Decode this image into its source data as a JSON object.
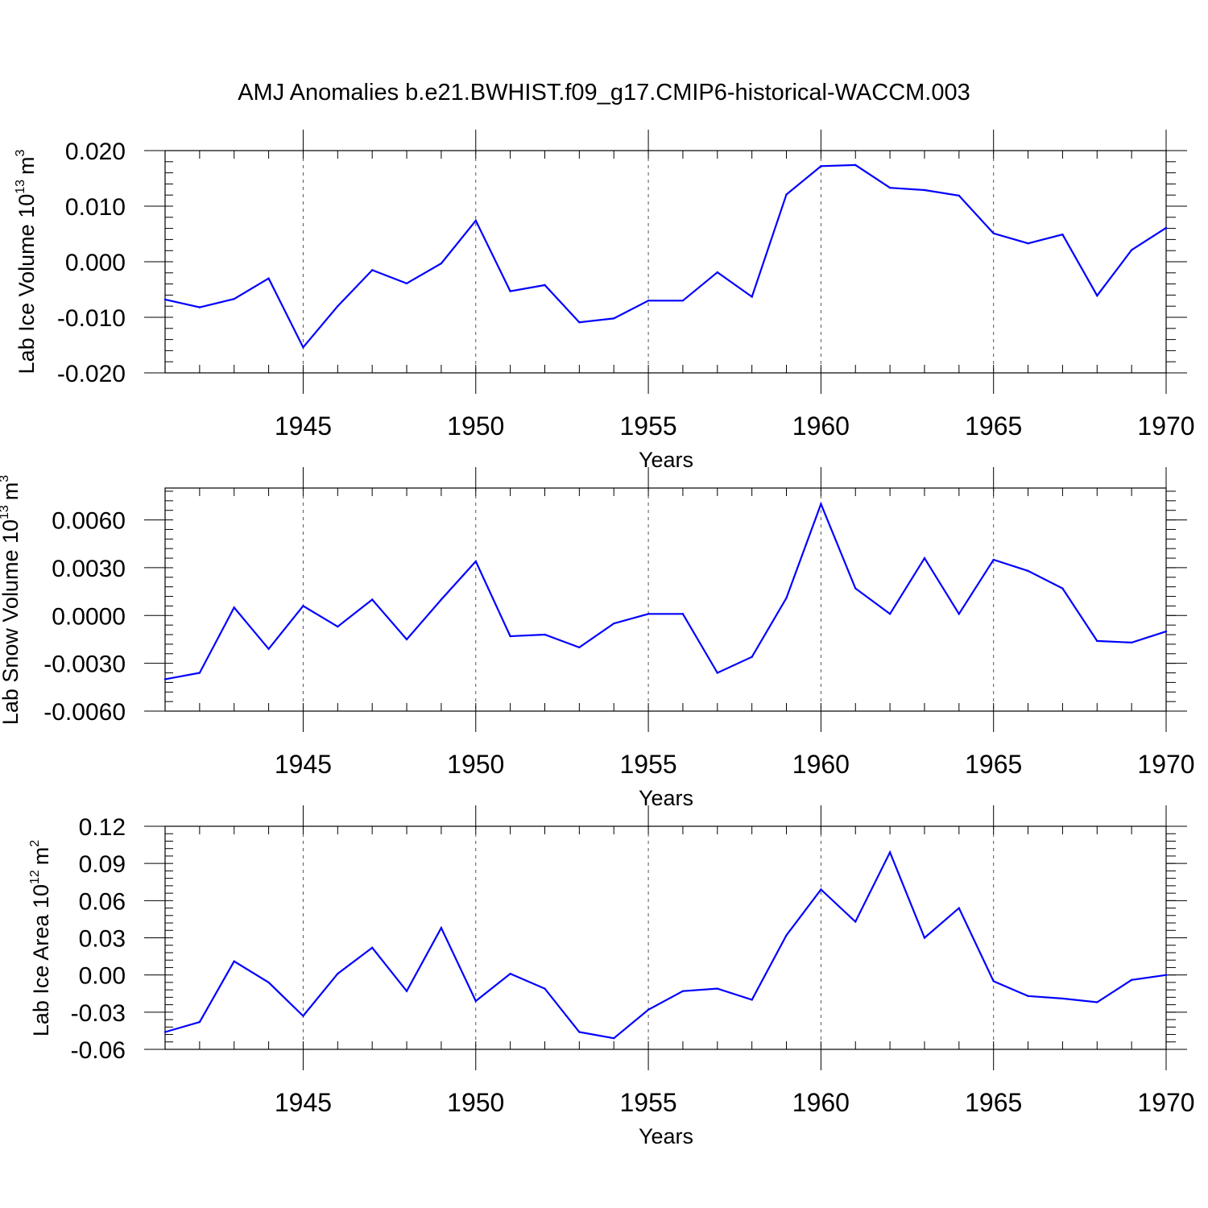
{
  "title": "AMJ Anomalies b.e21.BWHIST.f09_g17.CMIP6-historical-WACCM.003",
  "colors": {
    "line": "#0000ff",
    "axis": "#000000",
    "grid": "#555555"
  },
  "chart_data": [
    {
      "type": "line",
      "ylabel_text": "Lab Ice Volume 10",
      "ylabel_exponent": "13",
      "ylabel_unit": "m",
      "ylabel_unit_exponent": "3",
      "xlabel": "Years",
      "xlim": [
        1941,
        1970
      ],
      "ylim": [
        -0.02,
        0.02
      ],
      "yticks": [
        "0.020",
        "0.010",
        "0.000",
        "-0.010",
        "-0.020"
      ],
      "ytick_values": [
        0.02,
        0.01,
        0.0,
        -0.01,
        -0.02
      ],
      "xticks": [
        "1945",
        "1950",
        "1955",
        "1960",
        "1965",
        "1970"
      ],
      "xtick_values": [
        1945,
        1950,
        1955,
        1960,
        1965,
        1970
      ],
      "x": [
        1941,
        1942,
        1943,
        1944,
        1945,
        1946,
        1947,
        1948,
        1949,
        1950,
        1951,
        1952,
        1953,
        1954,
        1955,
        1956,
        1957,
        1958,
        1959,
        1960,
        1961,
        1962,
        1963,
        1964,
        1965,
        1966,
        1967,
        1968,
        1969,
        1970
      ],
      "values": [
        -0.0068,
        -0.0082,
        -0.0067,
        -0.003,
        -0.0154,
        -0.008,
        -0.0015,
        -0.0039,
        -0.0003,
        0.0074,
        -0.0053,
        -0.0042,
        -0.0109,
        -0.0102,
        -0.007,
        -0.007,
        -0.0019,
        -0.0063,
        0.0121,
        0.0172,
        0.0174,
        0.0133,
        0.0129,
        0.0119,
        0.0051,
        0.0033,
        0.0049,
        -0.0061,
        0.0021,
        0.0061
      ]
    },
    {
      "type": "line",
      "ylabel_text": "Lab Snow Volume 10",
      "ylabel_exponent": "13",
      "ylabel_unit": "m",
      "ylabel_unit_exponent": "3",
      "xlabel": "Years",
      "xlim": [
        1941,
        1970
      ],
      "ylim": [
        -0.006,
        0.008
      ],
      "yticks": [
        "0.0060",
        "0.0030",
        "0.0000",
        "-0.0030",
        "-0.0060"
      ],
      "ytick_values": [
        0.006,
        0.003,
        0.0,
        -0.003,
        -0.006
      ],
      "xticks": [
        "1945",
        "1950",
        "1955",
        "1960",
        "1965",
        "1970"
      ],
      "xtick_values": [
        1945,
        1950,
        1955,
        1960,
        1965,
        1970
      ],
      "x": [
        1941,
        1942,
        1943,
        1944,
        1945,
        1946,
        1947,
        1948,
        1949,
        1950,
        1951,
        1952,
        1953,
        1954,
        1955,
        1956,
        1957,
        1958,
        1959,
        1960,
        1961,
        1962,
        1963,
        1964,
        1965,
        1966,
        1967,
        1968,
        1969,
        1970
      ],
      "values": [
        -0.004,
        -0.0036,
        0.0005,
        -0.0021,
        0.0006,
        -0.0007,
        0.001,
        -0.0015,
        0.001,
        0.0034,
        -0.0013,
        -0.0012,
        -0.002,
        -0.0005,
        0.0001,
        0.0001,
        -0.0036,
        -0.0026,
        0.0011,
        0.007,
        0.0017,
        0.0001,
        0.0036,
        0.0001,
        0.0035,
        0.0028,
        0.0017,
        -0.0016,
        -0.0017,
        -0.001
      ]
    },
    {
      "type": "line",
      "ylabel_text": "Lab Ice Area 10",
      "ylabel_exponent": "12",
      "ylabel_unit": "m",
      "ylabel_unit_exponent": "2",
      "xlabel": "Years",
      "xlim": [
        1941,
        1970
      ],
      "ylim": [
        -0.06,
        0.12
      ],
      "yticks": [
        "0.12",
        "0.09",
        "0.06",
        "0.03",
        "0.00",
        "-0.03",
        "-0.06"
      ],
      "ytick_values": [
        0.12,
        0.09,
        0.06,
        0.03,
        0.0,
        -0.03,
        -0.06
      ],
      "xticks": [
        "1945",
        "1950",
        "1955",
        "1960",
        "1965",
        "1970"
      ],
      "xtick_values": [
        1945,
        1950,
        1955,
        1960,
        1965,
        1970
      ],
      "x": [
        1941,
        1942,
        1943,
        1944,
        1945,
        1946,
        1947,
        1948,
        1949,
        1950,
        1951,
        1952,
        1953,
        1954,
        1955,
        1956,
        1957,
        1958,
        1959,
        1960,
        1961,
        1962,
        1963,
        1964,
        1965,
        1966,
        1967,
        1968,
        1969,
        1970
      ],
      "values": [
        -0.046,
        -0.038,
        0.011,
        -0.006,
        -0.033,
        0.001,
        0.022,
        -0.013,
        0.038,
        -0.021,
        0.001,
        -0.011,
        -0.046,
        -0.051,
        -0.028,
        -0.013,
        -0.011,
        -0.02,
        0.032,
        0.069,
        0.043,
        0.099,
        0.03,
        0.054,
        -0.005,
        -0.017,
        -0.019,
        -0.022,
        -0.004,
        0.0
      ]
    }
  ]
}
